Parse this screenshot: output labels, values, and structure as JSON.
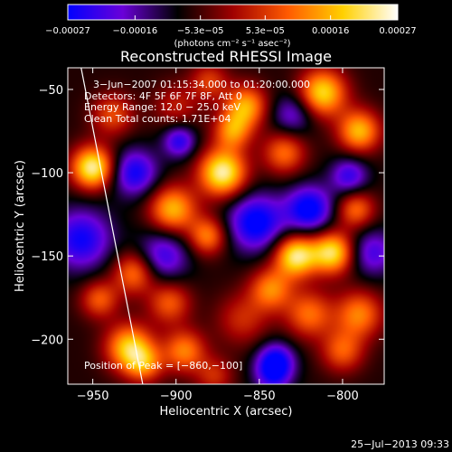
{
  "chart_data": {
    "type": "heatmap",
    "title": "Reconstructed RHESSI Image",
    "xlabel": "Heliocentric X (arcsec)",
    "ylabel": "Heliocentric Y (arcsec)",
    "xlim": [
      -965,
      -775
    ],
    "ylim": [
      -227,
      -37
    ],
    "x_ticks": [
      "−950",
      "−900",
      "−850",
      "−800"
    ],
    "x_tick_values": [
      -950,
      -900,
      -850,
      -800
    ],
    "y_ticks": [
      "−50",
      "−100",
      "−150",
      "−200"
    ],
    "y_tick_values": [
      -50,
      -100,
      -150,
      -200
    ],
    "colorbar": {
      "min": -0.00027,
      "max": 0.00027,
      "tick_labels": [
        "−0.00027",
        "−0.00016",
        "−5.3e−05",
        "5.3e−05",
        "0.00016",
        "0.00027"
      ],
      "tick_values": [
        -0.00027,
        -0.00016,
        -5.3e-05,
        5.3e-05,
        0.00016,
        0.00027
      ],
      "units": "(photons cm⁻² s⁻¹ asec⁻²)",
      "colors": [
        "#0000ff",
        "#6a00d8",
        "#000000",
        "#a00000",
        "#ff5a00",
        "#ffd000",
        "#ffffff"
      ]
    },
    "annotations": {
      "time_range": "3−Jun−2007 01:15:34.000 to 01:20:00.000",
      "detectors": "Detectors: 4F 5F 6F 7F 8F, Att 0",
      "energy": "Energy Range: 12.0 − 25.0 keV",
      "method": "Clean     Total counts: 1.71E+04",
      "peak": "Position of Peak = [−860,−100]"
    },
    "limb_line": [
      [
        -957,
        -37
      ],
      [
        -920,
        -227
      ]
    ],
    "blobs": [
      [
        -950,
        -97,
        1.0,
        9
      ],
      [
        -938,
        -65,
        0.45,
        9
      ],
      [
        -957,
        -140,
        -0.6,
        13
      ],
      [
        -946,
        -176,
        0.5,
        8
      ],
      [
        -928,
        -205,
        0.8,
        10
      ],
      [
        -925,
        -160,
        0.6,
        9
      ],
      [
        -925,
        -100,
        -0.6,
        10
      ],
      [
        -900,
        -60,
        0.3,
        10
      ],
      [
        -898,
        -81,
        -0.55,
        7
      ],
      [
        -902,
        -122,
        0.75,
        10
      ],
      [
        -908,
        -150,
        -0.5,
        11
      ],
      [
        -904,
        -178,
        0.5,
        9
      ],
      [
        -895,
        -207,
        0.6,
        9
      ],
      [
        -872,
        -100,
        1.0,
        10
      ],
      [
        -858,
        -60,
        0.7,
        9
      ],
      [
        -866,
        -75,
        0.6,
        8
      ],
      [
        -881,
        -138,
        0.6,
        8
      ],
      [
        -852,
        -130,
        -0.7,
        12
      ],
      [
        -860,
        -188,
        0.35,
        11
      ],
      [
        -840,
        -213,
        -0.6,
        8
      ],
      [
        -843,
        -170,
        0.6,
        9
      ],
      [
        -828,
        -150,
        0.95,
        9
      ],
      [
        -820,
        -185,
        0.55,
        10
      ],
      [
        -806,
        -148,
        0.9,
        9
      ],
      [
        -820,
        -122,
        -0.7,
        10
      ],
      [
        -812,
        -52,
        0.85,
        10
      ],
      [
        -790,
        -75,
        0.75,
        9
      ],
      [
        -796,
        -102,
        -0.5,
        8
      ],
      [
        -792,
        -122,
        0.55,
        8
      ],
      [
        -790,
        -185,
        0.6,
        10
      ],
      [
        -800,
        -207,
        0.5,
        9
      ],
      [
        -782,
        -148,
        -0.45,
        10
      ],
      [
        -835,
        -88,
        0.55,
        9
      ],
      [
        -830,
        -65,
        -0.4,
        9
      ],
      [
        -877,
        -222,
        0.35,
        8
      ],
      [
        -919,
        -215,
        0.5,
        8
      ],
      [
        -842,
        -222,
        -0.4,
        8
      ],
      [
        -880,
        -45,
        0.4,
        8
      ]
    ]
  },
  "timestamp": "25−Jul−2013 09:33"
}
